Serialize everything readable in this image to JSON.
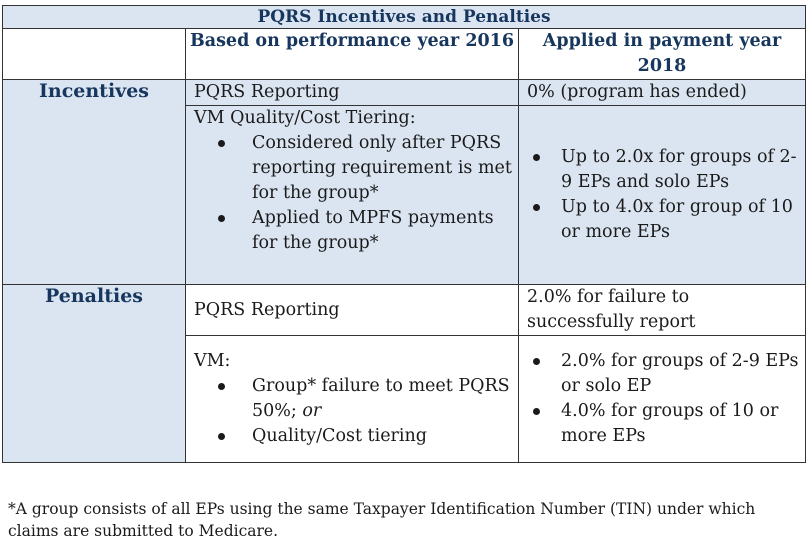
{
  "title": "PQRS Incentives and Penalties",
  "columns": {
    "performance": "Based on performance year 2016",
    "payment": "Applied in payment year 2018"
  },
  "incentives": {
    "label": "Incentives",
    "pqrs_label": "PQRS Reporting",
    "pqrs_payment": "0% (program has ended)",
    "vm_lead": "VM Quality/Cost Tiering:",
    "vm_bullets": [
      "Considered only after PQRS reporting requirement is met for the group*",
      "Applied to MPFS payments for the group*"
    ],
    "payment_bullets": [
      "Up to 2.0x for groups of 2-9 EPs and solo EPs",
      "Up to 4.0x for group of 10 or more EPs"
    ]
  },
  "penalties": {
    "label": "Penalties",
    "pqrs_label": "PQRS Reporting",
    "pqrs_payment": "2.0% for failure to successfully report",
    "vm_lead": "VM:",
    "vm_bullet1_text": "Group* failure to meet PQRS 50%;",
    "vm_bullet1_italic": "or",
    "vm_bullet2": "Quality/Cost tiering",
    "payment_bullets": [
      "2.0% for groups of 2-9 EPs or solo EP",
      "4.0% for groups of 10 or more EPs"
    ]
  },
  "footnote": "*A group consists of all EPs using the same Taxpayer Identification Number (TIN) under which claims are submitted to Medicare."
}
